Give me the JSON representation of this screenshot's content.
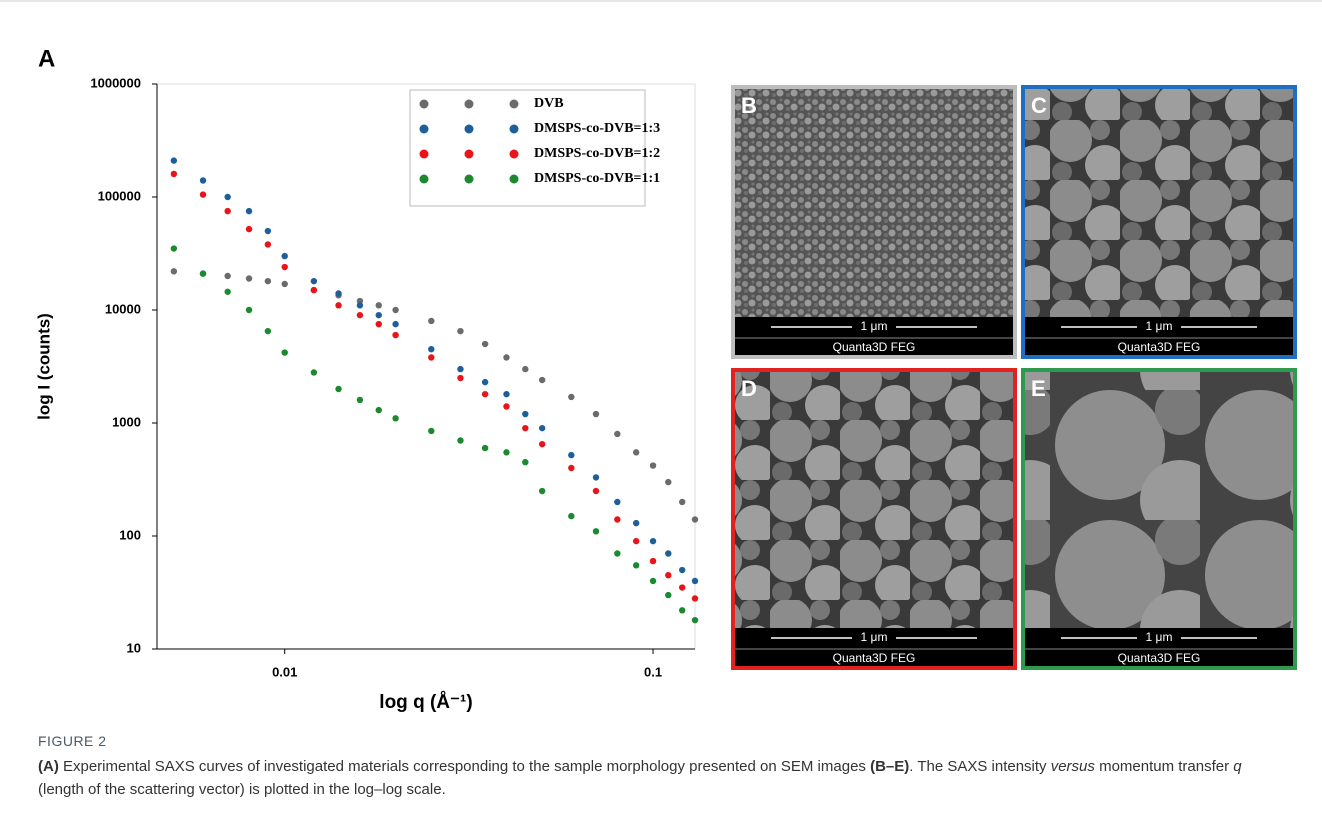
{
  "panel_label": "A",
  "chart_data": {
    "type": "scatter",
    "xlabel": "log q (Å⁻¹)",
    "ylabel": "log I (counts)",
    "log_x": true,
    "log_y": true,
    "legend": "upper right",
    "xlim": [
      0.0045,
      0.13
    ],
    "xticks": [
      0.01,
      0.1
    ],
    "ylim": [
      10,
      1000000
    ],
    "yticks": [
      10,
      100,
      1000,
      10000,
      100000,
      1000000
    ],
    "x": [
      0.005,
      0.006,
      0.007,
      0.008,
      0.009,
      0.01,
      0.012,
      0.014,
      0.016,
      0.018,
      0.02,
      0.025,
      0.03,
      0.035,
      0.04,
      0.045,
      0.05,
      0.06,
      0.07,
      0.08,
      0.09,
      0.1,
      0.11,
      0.12,
      0.13
    ],
    "series": [
      {
        "name": "DVB",
        "color": "#6b6b6b",
        "values": [
          22000,
          21000,
          20000,
          19000,
          18000,
          17000,
          15000,
          13500,
          12000,
          11000,
          10000,
          8000,
          6500,
          5000,
          3800,
          3000,
          2400,
          1700,
          1200,
          800,
          550,
          420,
          300,
          200,
          140
        ]
      },
      {
        "name": "DMSPS-co-DVB=1:3",
        "color": "#1f5f99",
        "values": [
          210000,
          140000,
          100000,
          75000,
          50000,
          30000,
          18000,
          14000,
          11000,
          9000,
          7500,
          4500,
          3000,
          2300,
          1800,
          1200,
          900,
          520,
          330,
          200,
          130,
          90,
          70,
          50,
          40
        ]
      },
      {
        "name": "DMSPS-co-DVB=1:2",
        "color": "#e8141a",
        "values": [
          160000,
          105000,
          75000,
          52000,
          38000,
          24000,
          15000,
          11000,
          9000,
          7500,
          6000,
          3800,
          2500,
          1800,
          1400,
          900,
          650,
          400,
          250,
          140,
          90,
          60,
          45,
          35,
          28
        ]
      },
      {
        "name": "DMSPS-co-DVB=1:1",
        "color": "#1b8a2e",
        "values": [
          35000,
          21000,
          14500,
          10000,
          6500,
          4200,
          2800,
          2000,
          1600,
          1300,
          1100,
          850,
          700,
          600,
          550,
          450,
          250,
          150,
          110,
          70,
          55,
          40,
          30,
          22,
          18
        ]
      }
    ]
  },
  "panels": [
    {
      "label": "B",
      "scale": "1 μm",
      "instrument": "Quanta3D FEG"
    },
    {
      "label": "C",
      "scale": "1 μm",
      "instrument": "Quanta3D FEG"
    },
    {
      "label": "D",
      "scale": "1 μm",
      "instrument": "Quanta3D FEG"
    },
    {
      "label": "E",
      "scale": "1 μm",
      "instrument": "Quanta3D FEG"
    }
  ],
  "caption": {
    "label": "FIGURE 2",
    "parts": [
      "(A)",
      " Experimental SAXS curves of investigated materials corresponding to the sample morphology presented on SEM images ",
      "(B–E)",
      ". The SAXS intensity ",
      "versus",
      " momentum transfer ",
      "q",
      " (length of the scattering vector) is plotted in the log–log scale."
    ]
  }
}
